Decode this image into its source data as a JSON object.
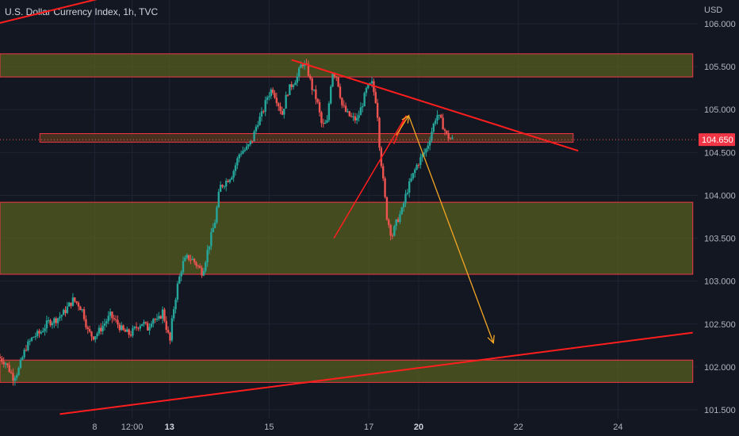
{
  "header": {
    "title": "U.S. Dollar Currency Index, 1h, TVC"
  },
  "chart_data": {
    "type": "candlestick",
    "symbol": "U.S. Dollar Currency Index",
    "interval": "1h",
    "source": "TVC",
    "currency_label": "USD",
    "last_price": "104.650",
    "ylim": [
      101.45,
      106.1
    ],
    "y_ticks": [
      "106.000",
      "105.500",
      "105.000",
      "104.500",
      "104.000",
      "103.500",
      "103.000",
      "102.500",
      "102.000",
      "101.500"
    ],
    "x_ticks": [
      {
        "label": "8",
        "bold": false,
        "t": 8
      },
      {
        "label": "12:00",
        "bold": false,
        "t": 9.5
      },
      {
        "label": "13",
        "bold": true,
        "t": 11
      },
      {
        "label": "15",
        "bold": false,
        "t": 15
      },
      {
        "label": "17",
        "bold": false,
        "t": 19
      },
      {
        "label": "20",
        "bold": true,
        "t": 21
      },
      {
        "label": "22",
        "bold": false,
        "t": 25
      },
      {
        "label": "24",
        "bold": false,
        "t": 29
      }
    ],
    "zones": [
      {
        "from_t": 4.2,
        "to_t": 32,
        "low": 105.38,
        "high": 105.65,
        "color": "#555f1f"
      },
      {
        "from_t": 5.8,
        "to_t": 27.2,
        "low": 104.62,
        "high": 104.72,
        "color": "#5a3a20"
      },
      {
        "from_t": 4.2,
        "to_t": 32,
        "low": 103.08,
        "high": 103.92,
        "color": "#555f1f"
      },
      {
        "from_t": 4.2,
        "to_t": 32,
        "low": 101.82,
        "high": 102.08,
        "color": "#555f1f"
      }
    ],
    "lines": [
      {
        "name": "descending-trendline",
        "t1": 15.9,
        "p1": 105.58,
        "t2": 27.4,
        "p2": 104.52,
        "color": "#ff1e1e",
        "width": 2
      },
      {
        "name": "ascending-support-line",
        "t1": 6.6,
        "p1": 101.45,
        "t2": 32,
        "p2": 102.4,
        "color": "#ff1e1e",
        "width": 2
      },
      {
        "name": "top-left-line",
        "t1": 4.2,
        "p1": 106.01,
        "t2": 10.4,
        "p2": 106.45,
        "color": "#ff1e1e",
        "width": 2
      },
      {
        "name": "wedge-lower-line",
        "t1": 17.6,
        "p1": 103.5,
        "t2": 20.5,
        "p2": 104.93,
        "color": "#ff1e1e",
        "width": 1.5
      },
      {
        "name": "wedge-connector",
        "t1": 20.0,
        "p1": 104.6,
        "t2": 20.5,
        "p2": 104.93,
        "color": "#ff1e1e",
        "width": 1.5
      }
    ],
    "arrows": [
      {
        "name": "projection-up-arrow",
        "t1": 20.1,
        "p1": 104.7,
        "t2": 20.6,
        "p2": 104.93,
        "color": "#f5a623"
      },
      {
        "name": "projection-down-arrow",
        "t1": 20.6,
        "p1": 104.93,
        "t2": 24.0,
        "p2": 102.28,
        "color": "#f5a623"
      }
    ],
    "price_path": [
      [
        4.2,
        102.12
      ],
      [
        4.5,
        102.05
      ],
      [
        4.8,
        101.88
      ],
      [
        5.0,
        101.95
      ],
      [
        5.3,
        102.22
      ],
      [
        5.6,
        102.35
      ],
      [
        5.9,
        102.4
      ],
      [
        6.2,
        102.52
      ],
      [
        6.5,
        102.55
      ],
      [
        6.8,
        102.62
      ],
      [
        7.0,
        102.7
      ],
      [
        7.2,
        102.78
      ],
      [
        7.4,
        102.74
      ],
      [
        7.6,
        102.65
      ],
      [
        7.8,
        102.42
      ],
      [
        8.0,
        102.35
      ],
      [
        8.2,
        102.4
      ],
      [
        8.5,
        102.52
      ],
      [
        8.7,
        102.6
      ],
      [
        9.0,
        102.5
      ],
      [
        9.2,
        102.42
      ],
      [
        9.5,
        102.38
      ],
      [
        9.8,
        102.48
      ],
      [
        10.0,
        102.52
      ],
      [
        10.2,
        102.45
      ],
      [
        10.4,
        102.58
      ],
      [
        10.6,
        102.52
      ],
      [
        10.8,
        102.65
      ],
      [
        11.0,
        102.4
      ],
      [
        11.1,
        102.3
      ],
      [
        11.2,
        102.6
      ],
      [
        11.4,
        102.95
      ],
      [
        11.6,
        103.2
      ],
      [
        11.8,
        103.28
      ],
      [
        12.0,
        103.25
      ],
      [
        12.2,
        103.18
      ],
      [
        12.4,
        103.1
      ],
      [
        12.6,
        103.35
      ],
      [
        12.9,
        103.7
      ],
      [
        13.1,
        104.1
      ],
      [
        13.3,
        104.15
      ],
      [
        13.6,
        104.25
      ],
      [
        13.9,
        104.5
      ],
      [
        14.2,
        104.55
      ],
      [
        14.4,
        104.65
      ],
      [
        14.6,
        104.85
      ],
      [
        14.8,
        104.95
      ],
      [
        15.0,
        105.15
      ],
      [
        15.2,
        105.25
      ],
      [
        15.4,
        105.1
      ],
      [
        15.6,
        104.95
      ],
      [
        15.8,
        105.2
      ],
      [
        16.0,
        105.3
      ],
      [
        16.2,
        105.38
      ],
      [
        16.4,
        105.55
      ],
      [
        16.6,
        105.48
      ],
      [
        16.8,
        105.25
      ],
      [
        17.0,
        105.1
      ],
      [
        17.2,
        104.8
      ],
      [
        17.4,
        104.85
      ],
      [
        17.6,
        105.45
      ],
      [
        17.8,
        105.38
      ],
      [
        18.0,
        105.05
      ],
      [
        18.2,
        104.95
      ],
      [
        18.4,
        104.9
      ],
      [
        18.6,
        104.88
      ],
      [
        18.8,
        105.05
      ],
      [
        19.0,
        105.25
      ],
      [
        19.2,
        105.3
      ],
      [
        19.4,
        105.05
      ],
      [
        19.5,
        104.6
      ],
      [
        19.6,
        104.3
      ],
      [
        19.8,
        103.75
      ],
      [
        20.0,
        103.52
      ],
      [
        20.2,
        103.7
      ],
      [
        20.4,
        103.82
      ],
      [
        20.6,
        104.05
      ],
      [
        20.8,
        104.2
      ],
      [
        21.0,
        104.35
      ],
      [
        21.2,
        104.45
      ],
      [
        21.4,
        104.55
      ],
      [
        21.6,
        104.75
      ],
      [
        21.8,
        104.95
      ],
      [
        22.0,
        104.85
      ],
      [
        22.2,
        104.7
      ],
      [
        22.4,
        104.65
      ]
    ]
  }
}
